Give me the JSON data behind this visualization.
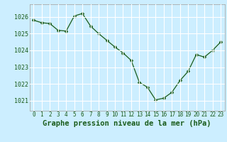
{
  "x": [
    0,
    1,
    2,
    3,
    4,
    5,
    6,
    7,
    8,
    9,
    10,
    11,
    12,
    13,
    14,
    15,
    16,
    17,
    18,
    19,
    20,
    21,
    22,
    23
  ],
  "y": [
    1025.8,
    1025.65,
    1025.6,
    1025.2,
    1025.15,
    1026.05,
    1026.2,
    1025.45,
    1025.0,
    1024.6,
    1024.2,
    1023.85,
    1023.4,
    1022.1,
    1021.8,
    1021.05,
    1021.15,
    1021.5,
    1022.2,
    1022.75,
    1023.75,
    1023.6,
    1024.0,
    1024.5
  ],
  "line_color": "#1a5c1a",
  "marker": "D",
  "marker_size": 2.5,
  "bg_color": "#cceeff",
  "grid_color": "#ffffff",
  "xlabel": "Graphe pression niveau de la mer (hPa)",
  "xlabel_fontsize": 7.5,
  "ylabel_ticks": [
    1021,
    1022,
    1023,
    1024,
    1025,
    1026
  ],
  "xtick_labels": [
    "0",
    "1",
    "2",
    "3",
    "4",
    "5",
    "6",
    "7",
    "8",
    "9",
    "10",
    "11",
    "12",
    "13",
    "14",
    "15",
    "16",
    "17",
    "18",
    "19",
    "20",
    "21",
    "22",
    "23"
  ],
  "ytick_fontsize": 6.0,
  "xtick_fontsize": 5.5,
  "ylim": [
    1020.4,
    1026.75
  ],
  "xlim": [
    -0.5,
    23.5
  ]
}
